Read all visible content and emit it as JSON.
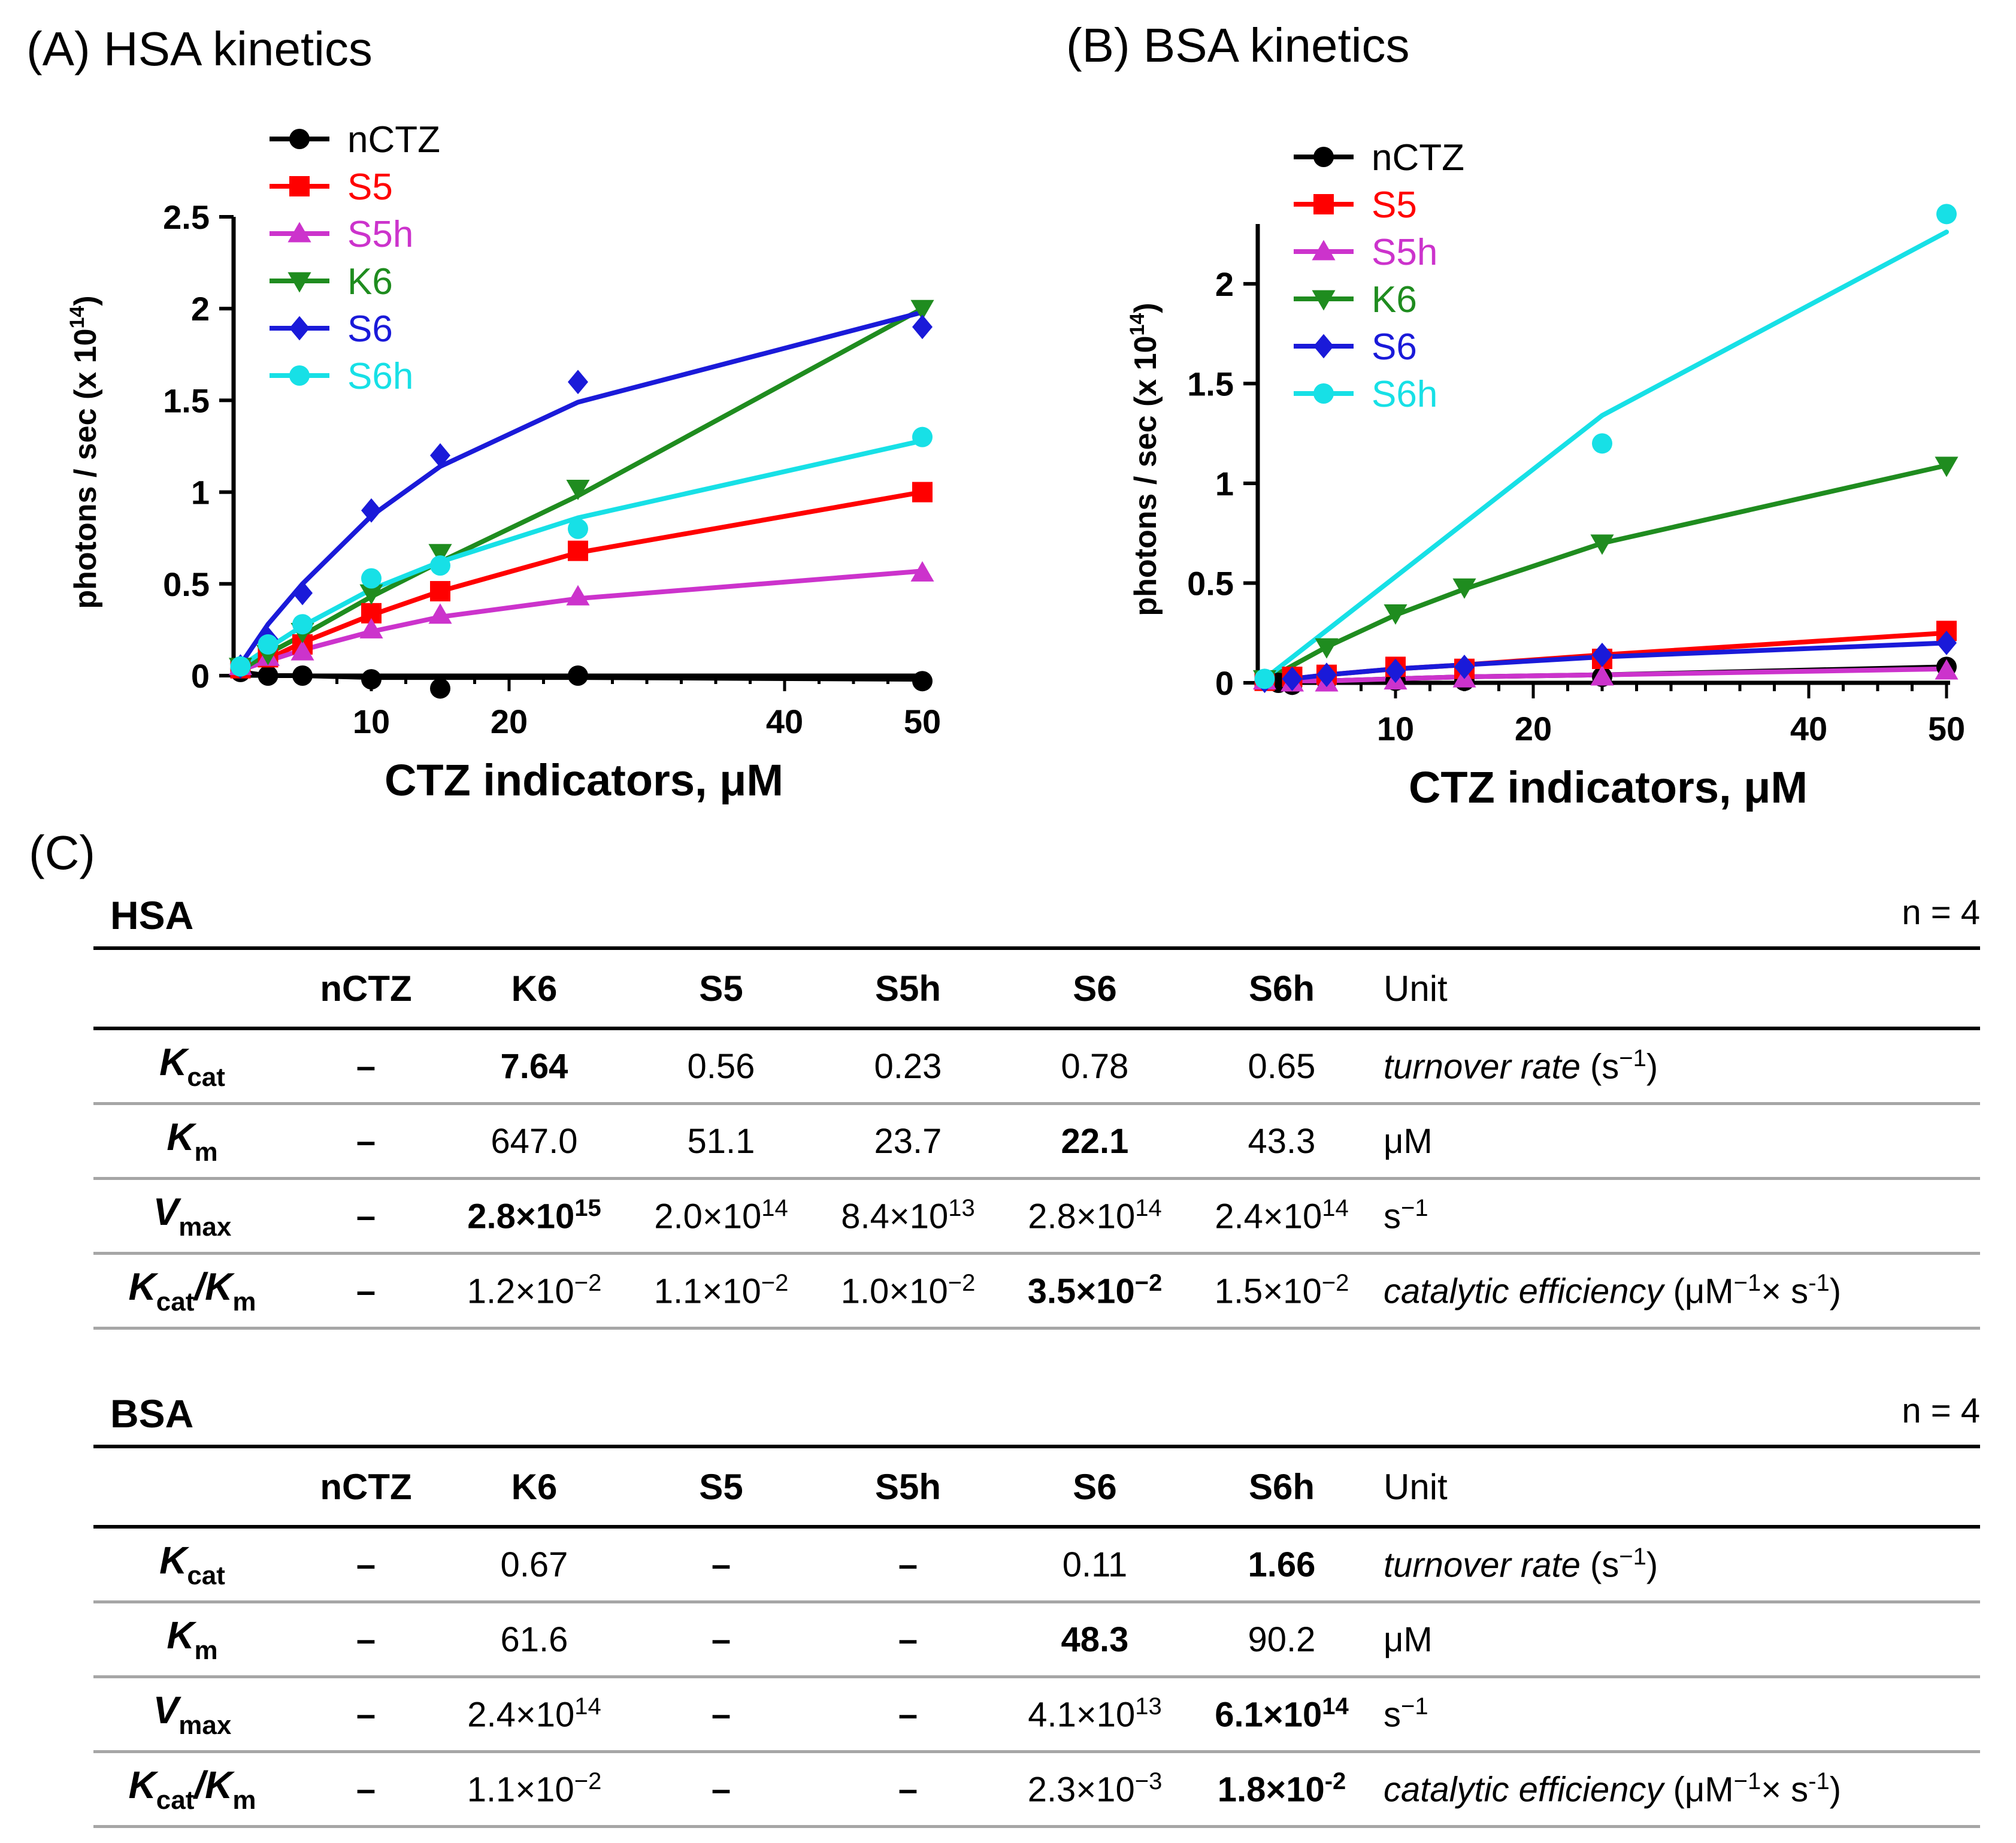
{
  "panel_a_title": "(A) HSA kinetics",
  "panel_b_title": "(B) BSA kinetics",
  "panel_c_label": "(C)",
  "colors": {
    "nCTZ": "#000000",
    "S5": "#ff0000",
    "S5h": "#cc33cc",
    "K6": "#1f8c1f",
    "S6": "#1a1ad9",
    "S6h": "#17e0e6"
  },
  "chart_data": [
    {
      "type": "line",
      "title": "(A) HSA kinetics",
      "xlabel": "CTZ indicators, μM",
      "ylabel": "photons / sec (x 10",
      "ylabel_sup": "14",
      "ylabel_tail": ")",
      "xlim": [
        0,
        50
      ],
      "ylim": [
        0,
        2.5
      ],
      "xticks_labeled": [
        10,
        20,
        40,
        50
      ],
      "yticks": [
        0,
        0.5,
        1,
        1.5,
        2,
        2.5
      ],
      "ytick_labels": [
        "0",
        "0.5",
        "1",
        "1.5",
        "2",
        "2.5"
      ],
      "legend_position": "top-left",
      "series": [
        {
          "name": "nCTZ",
          "marker": "circle",
          "x": [
            0.5,
            2.5,
            5,
            10,
            15,
            25,
            50
          ],
          "y": [
            0.02,
            0.0,
            0.0,
            -0.02,
            -0.07,
            0.0,
            -0.03
          ],
          "fit": [
            0.02,
            0.0,
            0.0,
            -0.01,
            -0.01,
            -0.01,
            -0.02
          ]
        },
        {
          "name": "S5",
          "marker": "square",
          "x": [
            0.5,
            2.5,
            5,
            10,
            15,
            25,
            50
          ],
          "y": [
            0.04,
            0.1,
            0.17,
            0.34,
            0.46,
            0.68,
            1.0
          ],
          "fit": [
            0.04,
            0.09,
            0.18,
            0.33,
            0.46,
            0.67,
            1.0
          ]
        },
        {
          "name": "S5h",
          "marker": "triangle-up",
          "x": [
            0.5,
            2.5,
            5,
            10,
            15,
            25,
            50
          ],
          "y": [
            0.05,
            0.1,
            0.13,
            0.25,
            0.33,
            0.43,
            0.56
          ],
          "fit": [
            0.03,
            0.08,
            0.14,
            0.24,
            0.32,
            0.42,
            0.57
          ]
        },
        {
          "name": "K6",
          "marker": "triangle-down",
          "x": [
            0.5,
            2.5,
            5,
            10,
            15,
            25,
            50
          ],
          "y": [
            0.05,
            0.12,
            0.24,
            0.45,
            0.67,
            1.02,
            2.0
          ],
          "fit": [
            0.03,
            0.12,
            0.22,
            0.43,
            0.62,
            0.98,
            2.0
          ]
        },
        {
          "name": "S6",
          "marker": "diamond",
          "x": [
            0.5,
            2.5,
            5,
            10,
            15,
            25,
            50
          ],
          "y": [
            0.05,
            0.2,
            0.45,
            0.9,
            1.2,
            1.6,
            1.9
          ],
          "fit": [
            0.06,
            0.28,
            0.5,
            0.87,
            1.14,
            1.49,
            1.98
          ]
        },
        {
          "name": "S6h",
          "marker": "circle",
          "x": [
            0.5,
            2.5,
            5,
            10,
            15,
            25,
            50
          ],
          "y": [
            0.05,
            0.17,
            0.28,
            0.53,
            0.6,
            0.8,
            1.3
          ],
          "fit": [
            0.05,
            0.15,
            0.27,
            0.47,
            0.62,
            0.86,
            1.28
          ]
        }
      ]
    },
    {
      "type": "line",
      "title": "(B) BSA kinetics",
      "xlabel": "CTZ indicators, μM",
      "ylabel": "photons / sec (x 10",
      "ylabel_sup": "14",
      "ylabel_tail": ")",
      "xlim": [
        0,
        50
      ],
      "ylim": [
        0,
        2.3
      ],
      "xticks_labeled": [
        10,
        20,
        40,
        50
      ],
      "yticks": [
        0,
        0.5,
        1,
        1.5,
        2
      ],
      "ytick_labels": [
        "0",
        "0.5",
        "1",
        "1.5",
        "2"
      ],
      "legend_position": "top-left",
      "series": [
        {
          "name": "nCTZ",
          "marker": "circle",
          "x": [
            0.5,
            1.5,
            2.5,
            5,
            10,
            15,
            25,
            50
          ],
          "y": [
            0.01,
            0.0,
            -0.01,
            0.01,
            0.01,
            0.01,
            0.03,
            0.08
          ],
          "fit": [
            0.0,
            0.0,
            0.01,
            0.01,
            0.02,
            0.03,
            0.04,
            0.08
          ]
        },
        {
          "name": "S5",
          "marker": "square",
          "x": [
            0.5,
            2.5,
            5,
            10,
            15,
            25,
            50
          ],
          "y": [
            0.01,
            0.03,
            0.04,
            0.08,
            0.07,
            0.12,
            0.26
          ],
          "fit": [
            0.01,
            0.02,
            0.04,
            0.07,
            0.09,
            0.14,
            0.25
          ]
        },
        {
          "name": "S5h",
          "marker": "triangle-up",
          "x": [
            0.5,
            2.5,
            5,
            10,
            15,
            25,
            50
          ],
          "y": [
            0.01,
            0.0,
            0.0,
            0.01,
            0.02,
            0.03,
            0.06
          ],
          "fit": [
            0.0,
            0.01,
            0.01,
            0.02,
            0.03,
            0.04,
            0.07
          ]
        },
        {
          "name": "K6",
          "marker": "triangle-down",
          "x": [
            0.5,
            5,
            10,
            15,
            25,
            50
          ],
          "y": [
            0.02,
            0.18,
            0.35,
            0.48,
            0.7,
            1.09
          ],
          "fit": [
            0.01,
            0.18,
            0.34,
            0.47,
            0.7,
            1.09
          ]
        },
        {
          "name": "S6",
          "marker": "diamond",
          "x": [
            0.5,
            2.5,
            5,
            10,
            15,
            25,
            50
          ],
          "y": [
            0.01,
            0.02,
            0.04,
            0.06,
            0.08,
            0.14,
            0.2
          ],
          "fit": [
            0.0,
            0.02,
            0.04,
            0.07,
            0.09,
            0.13,
            0.2
          ]
        },
        {
          "name": "S6h",
          "marker": "circle",
          "x": [
            0.5,
            25,
            50
          ],
          "y": [
            0.02,
            1.2,
            2.35
          ],
          "fit": [
            0.02,
            1.34,
            2.26
          ]
        }
      ]
    }
  ],
  "tables": [
    {
      "name": "HSA",
      "n": "n = 4",
      "headers": [
        "nCTZ",
        "K6",
        "S5",
        "S5h",
        "S6",
        "S6h",
        "Unit"
      ],
      "rows": [
        {
          "param": "K",
          "sub": "cat",
          "cells": [
            {
              "t": "–",
              "bold": true
            },
            {
              "t": "7.64",
              "bold": true
            },
            {
              "t": "0.56"
            },
            {
              "t": "0.23"
            },
            {
              "t": "0.78"
            },
            {
              "t": "0.65"
            }
          ],
          "unit_italic": "turnover rate",
          "unit_tail": " (s",
          "unit_sup": "−1",
          "unit_end": ")"
        },
        {
          "param": "K",
          "sub": "m",
          "cells": [
            {
              "t": "–",
              "bold": true
            },
            {
              "t": "647.0"
            },
            {
              "t": "51.1"
            },
            {
              "t": "23.7"
            },
            {
              "t": "22.1",
              "bold": true
            },
            {
              "t": "43.3"
            }
          ],
          "unit_italic": "",
          "unit_tail": "μM",
          "unit_sup": "",
          "unit_end": ""
        },
        {
          "param": "V",
          "sub": "max",
          "cells": [
            {
              "t": "–",
              "bold": true
            },
            {
              "m": "2.8×10",
              "e": "15",
              "bold": true
            },
            {
              "m": "2.0×10",
              "e": "14"
            },
            {
              "m": "8.4×10",
              "e": "13"
            },
            {
              "m": "2.8×10",
              "e": "14"
            },
            {
              "m": "2.4×10",
              "e": "14"
            }
          ],
          "unit_italic": "",
          "unit_tail": "s",
          "unit_sup": "−1",
          "unit_end": ""
        },
        {
          "param": "K",
          "sub": "cat",
          "param2": "/K",
          "sub2": "m",
          "cells": [
            {
              "t": "–",
              "bold": true
            },
            {
              "m": "1.2×10",
              "e": "−2"
            },
            {
              "m": "1.1×10",
              "e": "−2"
            },
            {
              "m": "1.0×10",
              "e": "−2"
            },
            {
              "m": "3.5×10",
              "e": "−2",
              "bold": true
            },
            {
              "m": "1.5×10",
              "e": "−2"
            }
          ],
          "unit_italic": "catalytic efficiency",
          "unit_tail": " (μM",
          "unit_sup": "−1",
          "unit_end": "× s",
          "unit_sup2": "-1",
          "unit_close": ")"
        }
      ]
    },
    {
      "name": "BSA",
      "n": "n = 4",
      "headers": [
        "nCTZ",
        "K6",
        "S5",
        "S5h",
        "S6",
        "S6h",
        "Unit"
      ],
      "rows": [
        {
          "param": "K",
          "sub": "cat",
          "cells": [
            {
              "t": "–",
              "bold": true
            },
            {
              "t": "0.67"
            },
            {
              "t": "–",
              "bold": true
            },
            {
              "t": "–",
              "bold": true
            },
            {
              "t": "0.11"
            },
            {
              "t": "1.66",
              "bold": true
            }
          ],
          "unit_italic": "turnover rate",
          "unit_tail": " (s",
          "unit_sup": "−1",
          "unit_end": ")"
        },
        {
          "param": "K",
          "sub": "m",
          "cells": [
            {
              "t": "–",
              "bold": true
            },
            {
              "t": "61.6"
            },
            {
              "t": "–",
              "bold": true
            },
            {
              "t": "–",
              "bold": true
            },
            {
              "t": "48.3",
              "bold": true
            },
            {
              "t": "90.2"
            }
          ],
          "unit_italic": "",
          "unit_tail": "μM",
          "unit_sup": "",
          "unit_end": ""
        },
        {
          "param": "V",
          "sub": "max",
          "cells": [
            {
              "t": "–",
              "bold": true
            },
            {
              "m": "2.4×10",
              "e": "14"
            },
            {
              "t": "–",
              "bold": true
            },
            {
              "t": "–",
              "bold": true
            },
            {
              "m": "4.1×10",
              "e": "13"
            },
            {
              "m": "6.1×10",
              "e": "14",
              "bold": true
            }
          ],
          "unit_italic": "",
          "unit_tail": "s",
          "unit_sup": "−1",
          "unit_end": ""
        },
        {
          "param": "K",
          "sub": "cat",
          "param2": "/K",
          "sub2": "m",
          "cells": [
            {
              "t": "–",
              "bold": true
            },
            {
              "m": "1.1×10",
              "e": "−2"
            },
            {
              "t": "–",
              "bold": true
            },
            {
              "t": "–",
              "bold": true
            },
            {
              "m": "2.3×10",
              "e": "−3"
            },
            {
              "m": "1.8×10",
              "e": "-2",
              "bold": true
            }
          ],
          "unit_italic": "catalytic efficiency",
          "unit_tail": " (μM",
          "unit_sup": "−1",
          "unit_end": "× s",
          "unit_sup2": "-1",
          "unit_close": ")"
        }
      ]
    }
  ]
}
